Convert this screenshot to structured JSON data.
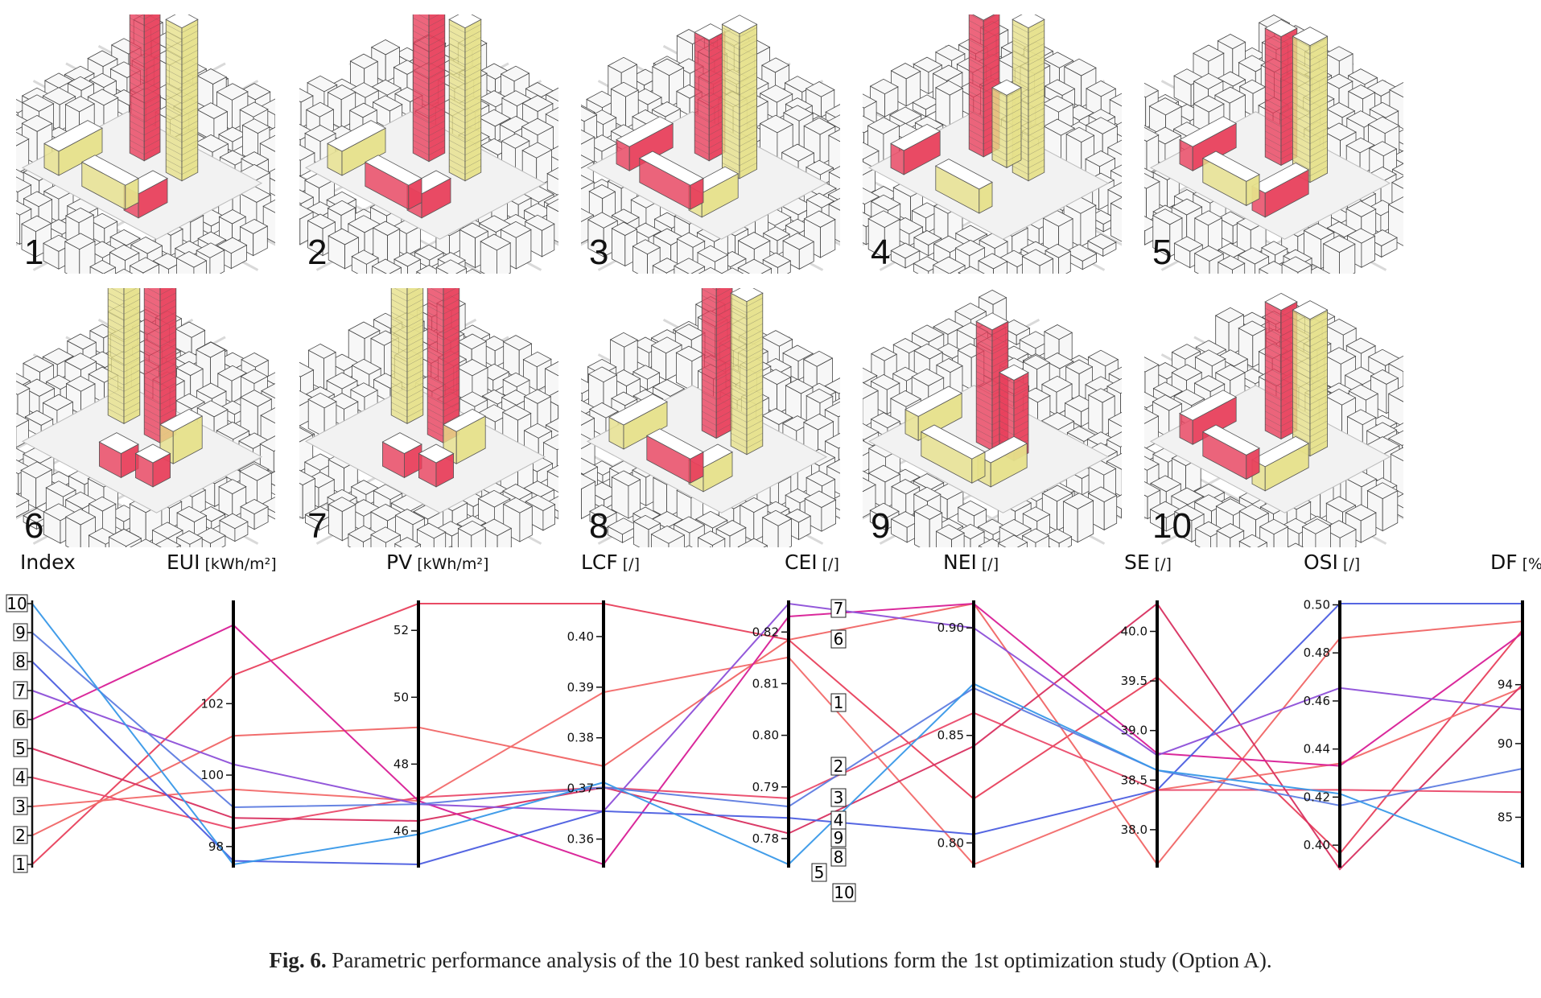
{
  "thumbnails": [
    {
      "label": "1"
    },
    {
      "label": "2"
    },
    {
      "label": "3"
    },
    {
      "label": "4"
    },
    {
      "label": "5"
    },
    {
      "label": "6"
    },
    {
      "label": "7"
    },
    {
      "label": "8"
    },
    {
      "label": "9"
    },
    {
      "label": "10"
    }
  ],
  "colors": {
    "red": "#e8405c",
    "yellow": "#e6e08a",
    "context": "#f7f7f7",
    "street": "#d9d9d9"
  },
  "chart_data": {
    "type": "parallel-coordinates",
    "title": "",
    "axes": [
      {
        "key": "index",
        "name": "Index",
        "unit": "",
        "range": [
          1,
          10
        ],
        "ticks": [
          "1",
          "2",
          "3",
          "4",
          "5",
          "6",
          "7",
          "8",
          "9",
          "10"
        ]
      },
      {
        "key": "eui",
        "name": "EUI",
        "unit": "[kWh/m²]",
        "range": [
          97.5,
          104.8
        ],
        "ticks": [
          "98",
          "100",
          "102"
        ],
        "tickValues": [
          98,
          100,
          102
        ]
      },
      {
        "key": "pv",
        "name": "PV",
        "unit": "[kWh/m²]",
        "range": [
          45,
          52.8
        ],
        "ticks": [
          "46",
          "48",
          "50",
          "52"
        ],
        "tickValues": [
          46,
          48,
          50,
          52
        ]
      },
      {
        "key": "lcf",
        "name": "LCF",
        "unit": "[/]",
        "range": [
          0.355,
          0.4065
        ],
        "ticks": [
          "0.36",
          "0.37",
          "0.38",
          "0.39",
          "0.40"
        ],
        "tickValues": [
          0.36,
          0.37,
          0.38,
          0.39,
          0.4
        ]
      },
      {
        "key": "cei",
        "name": "CEI",
        "unit": "[/]",
        "range": [
          0.775,
          0.8255
        ],
        "ticks": [
          "0.78",
          "0.79",
          "0.80",
          "0.81",
          "0.82"
        ],
        "tickValues": [
          0.78,
          0.79,
          0.8,
          0.81,
          0.82
        ]
      },
      {
        "key": "nei",
        "name": "NEI",
        "unit": "[/]",
        "range": [
          0.79,
          0.9113
        ],
        "ticks": [
          "0.80",
          "0.85",
          "0.90"
        ],
        "tickValues": [
          0.8,
          0.85,
          0.9
        ]
      },
      {
        "key": "se",
        "name": "SE",
        "unit": "[/]",
        "range": [
          37.65,
          40.28
        ],
        "ticks": [
          "38.0",
          "38.5",
          "39.0",
          "39.5",
          "40.0"
        ],
        "tickValues": [
          38.0,
          38.5,
          39.0,
          39.5,
          40.0
        ]
      },
      {
        "key": "osi",
        "name": "OSI",
        "unit": "[/]",
        "range": [
          0.392,
          0.5005
        ],
        "ticks": [
          "0.40",
          "0.42",
          "0.44",
          "0.46",
          "0.48",
          "0.50"
        ],
        "tickValues": [
          0.4,
          0.42,
          0.44,
          0.46,
          0.48,
          0.5
        ]
      },
      {
        "key": "df",
        "name": "DF",
        "unit": "[%]",
        "range": [
          81.8,
          99.5
        ],
        "ticks": [
          "85",
          "90",
          "94"
        ],
        "tickValues": [
          85,
          90,
          94
        ]
      }
    ],
    "series": [
      {
        "name": "1",
        "color": "#e8405c",
        "values": {
          "index": 1,
          "eui": 102.8,
          "pv": 52.8,
          "lcf": 0.4065,
          "cei": 0.8185,
          "nei": 0.8205,
          "se": 39.54,
          "osi": 0.3965,
          "df": 97.7
        }
      },
      {
        "name": "2",
        "color": "#f06565",
        "values": {
          "index": 2,
          "eui": 101.1,
          "pv": 49.1,
          "lcf": 0.3744,
          "cei": 0.8185,
          "nei": 0.9113,
          "se": 37.65,
          "osi": 0.4861,
          "df": 98.3
        }
      },
      {
        "name": "3",
        "color": "#f26a6a",
        "values": {
          "index": 3,
          "eui": 99.6,
          "pv": 46.9,
          "lcf": 0.389,
          "cei": 0.8151,
          "nei": 0.79,
          "se": 38.4,
          "osi": 0.434,
          "df": 93.8
        }
      },
      {
        "name": "4",
        "color": "#ea4a6a",
        "values": {
          "index": 4,
          "eui": 98.5,
          "pv": 47.0,
          "lcf": 0.3702,
          "cei": 0.7878,
          "nei": 0.8605,
          "se": 38.4,
          "osi": 0.423,
          "df": 86.7
        }
      },
      {
        "name": "5",
        "color": "#d83060",
        "values": {
          "index": 5,
          "eui": 98.8,
          "pv": 46.3,
          "lcf": 0.3702,
          "cei": 0.781,
          "nei": 0.845,
          "se": 40.28,
          "osi": 0.39,
          "df": 94.0
        }
      },
      {
        "name": "6",
        "color": "#d81e96",
        "values": {
          "index": 6,
          "eui": 104.2,
          "pv": 46.9,
          "lcf": 0.355,
          "cei": 0.823,
          "nei": 0.9113,
          "se": 38.77,
          "osi": 0.433,
          "df": 97.5
        }
      },
      {
        "name": "7",
        "color": "#8d4fd8",
        "values": {
          "index": 7,
          "eui": 100.3,
          "pv": 46.8,
          "lcf": 0.3655,
          "cei": 0.8255,
          "nei": 0.9,
          "se": 38.75,
          "osi": 0.4654,
          "df": 92.3
        }
      },
      {
        "name": "8",
        "color": "#4c5ee0",
        "values": {
          "index": 8,
          "eui": 97.6,
          "pv": 45.0,
          "lcf": 0.3655,
          "cei": 0.784,
          "nei": 0.804,
          "se": 38.4,
          "osi": 0.5005,
          "df": 99.5
        }
      },
      {
        "name": "9",
        "color": "#5e7ce0",
        "values": {
          "index": 9,
          "eui": 99.1,
          "pv": 46.8,
          "lcf": 0.3702,
          "cei": 0.7862,
          "nei": 0.872,
          "se": 38.6,
          "osi": 0.4165,
          "df": 88.3
        }
      },
      {
        "name": "10",
        "color": "#3898e8",
        "values": {
          "index": 10,
          "eui": 97.5,
          "pv": 45.9,
          "lcf": 0.3712,
          "cei": 0.775,
          "nei": 0.874,
          "se": 38.6,
          "osi": 0.4214,
          "df": 81.8
        }
      }
    ],
    "annotations": [
      "7",
      "6",
      "1",
      "2",
      "3",
      "4",
      "9",
      "8",
      "5",
      "10"
    ]
  },
  "caption": {
    "label": "Fig. 6.",
    "text": "Parametric performance analysis of the 10 best ranked solutions form the 1st optimization study (Option A)."
  }
}
